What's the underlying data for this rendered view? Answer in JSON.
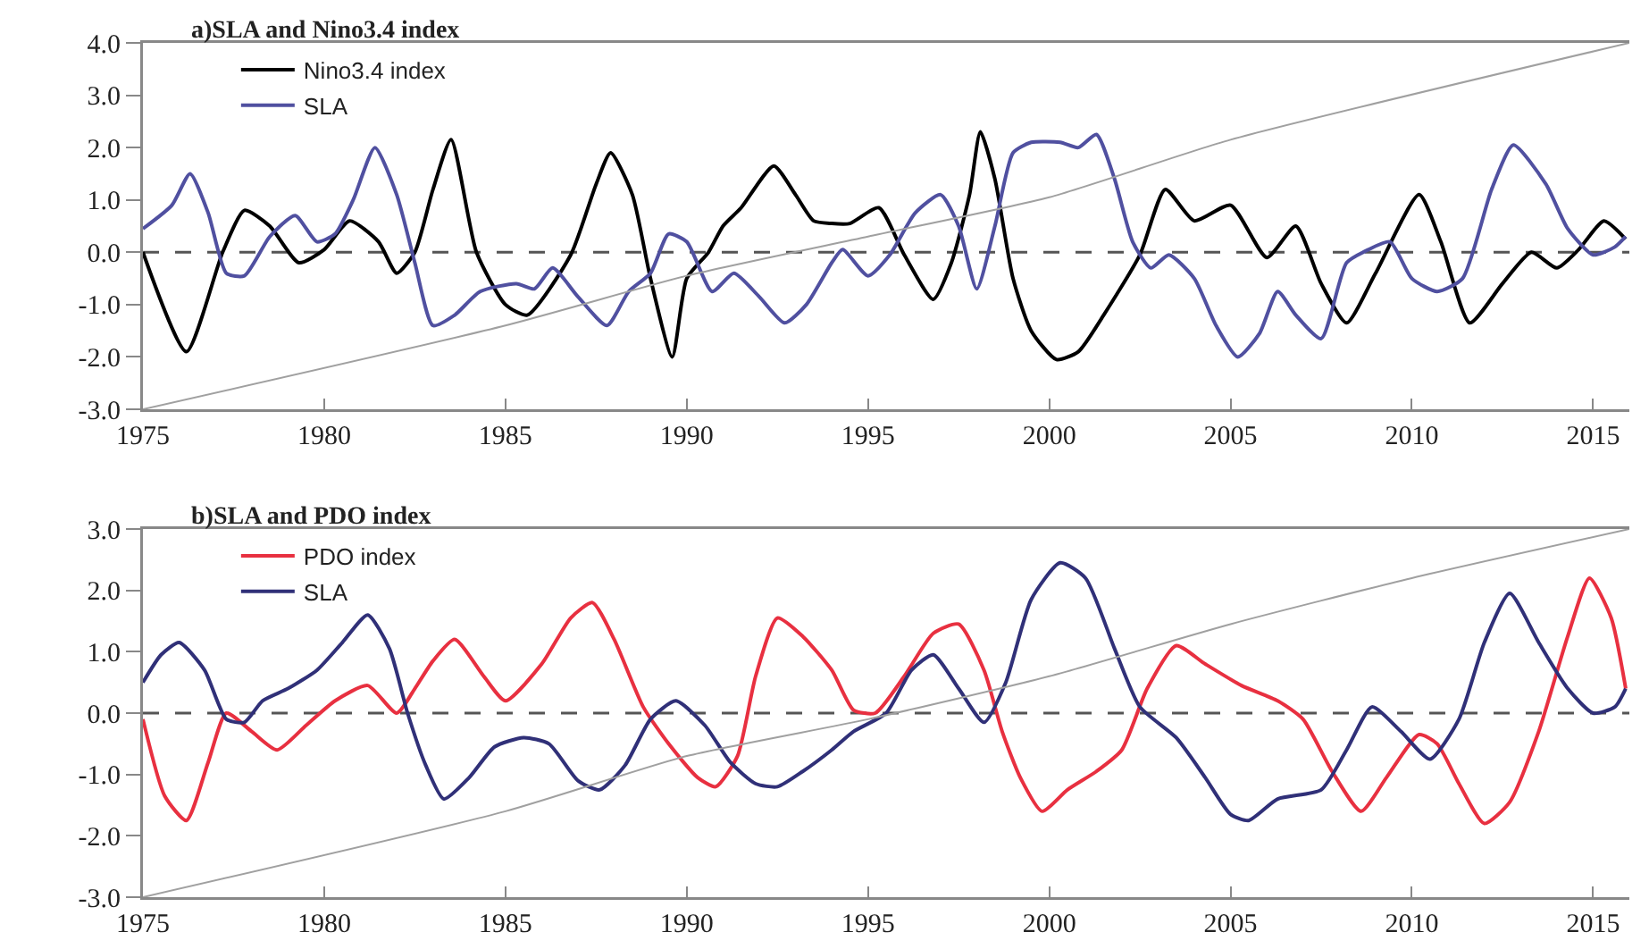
{
  "chart_data": [
    {
      "type": "line",
      "title": "a)SLA and Nino3.4 index",
      "xlim": [
        1975,
        2016
      ],
      "xticks": [
        1975,
        1980,
        1985,
        1990,
        1995,
        2000,
        2005,
        2010,
        2015
      ],
      "ylim": [
        -3,
        4
      ],
      "yticks": [
        {
          "value": -3,
          "label": "-3.0"
        },
        {
          "value": -2,
          "label": "-2.0"
        },
        {
          "value": -1,
          "label": "-1.0"
        },
        {
          "value": 0,
          "label": "0.0"
        },
        {
          "value": 1,
          "label": "1.0"
        },
        {
          "value": 2,
          "label": "2.0"
        },
        {
          "value": 3,
          "label": "3.0"
        },
        {
          "value": 4,
          "label": "4.0"
        }
      ],
      "grid": false,
      "legend": "top left",
      "marker": "none",
      "line_style": "solid",
      "ref_lines": [
        {
          "axis": "y",
          "value": 0,
          "color": "#555555",
          "line_style": "dashed"
        }
      ],
      "series": [
        {
          "name": "Nino3.4 index",
          "color": "#000000",
          "x": [
            1975,
            1976.2,
            1977.2,
            1977.8,
            1978.5,
            1979.3,
            1980,
            1980.7,
            1981.5,
            1982,
            1982.5,
            1983,
            1983.5,
            1984.2,
            1985,
            1985.6,
            1986.8,
            1987.5,
            1987.9,
            1988.5,
            1989,
            1989.6,
            1990,
            1990.6,
            1991,
            1991.5,
            1992.4,
            1993,
            1993.5,
            1994,
            1994.5,
            1995.3,
            1996,
            1996.8,
            1997.3,
            1997.8,
            1998.1,
            1998.5,
            1999,
            1999.5,
            2000.2,
            2000.8,
            2001.5,
            2002.5,
            2003.2,
            2004,
            2005,
            2006,
            2006.8,
            2007.5,
            2008.2,
            2009,
            2010.2,
            2010.8,
            2011.6,
            2012.5,
            2013.3,
            2014,
            2014.6,
            2015.3,
            2015.9
          ],
          "values": [
            0,
            -1.9,
            0,
            0.8,
            0.5,
            -0.2,
            0.05,
            0.6,
            0.2,
            -0.4,
            0,
            1.2,
            2.15,
            0,
            -1,
            -1.2,
            -0.05,
            1.3,
            1.9,
            1.1,
            -0.5,
            -2,
            -0.5,
            0,
            0.5,
            0.85,
            1.65,
            1.1,
            0.6,
            0.55,
            0.55,
            0.85,
            -0.05,
            -0.9,
            -0.2,
            1.1,
            2.3,
            1.4,
            -0.5,
            -1.5,
            -2.05,
            -1.9,
            -1.2,
            -0.05,
            1.2,
            0.6,
            0.9,
            -0.1,
            0.5,
            -0.6,
            -1.35,
            -0.4,
            1.1,
            0.2,
            -1.35,
            -0.6,
            0,
            -0.3,
            0.05,
            0.6,
            0.25
          ]
        },
        {
          "name": "SLA",
          "color": "#5050a0",
          "x": [
            1975,
            1975.8,
            1976.3,
            1976.8,
            1977.3,
            1977.8,
            1978.5,
            1979.2,
            1979.8,
            1980.3,
            1980.8,
            1981.4,
            1982,
            1982.5,
            1983,
            1983.6,
            1984.3,
            1985.3,
            1985.8,
            1986.3,
            1987,
            1987.8,
            1988.4,
            1989,
            1989.5,
            1990,
            1990.7,
            1991.3,
            1992,
            1992.7,
            1993.3,
            1994,
            1994.3,
            1995,
            1995.6,
            1996.3,
            1997,
            1997.5,
            1998,
            1998.5,
            1999,
            1999.5,
            2000.3,
            2000.8,
            2001.3,
            2001.8,
            2002.3,
            2002.8,
            2003.3,
            2004,
            2004.6,
            2005.2,
            2005.8,
            2006.3,
            2006.8,
            2007.5,
            2008.2,
            2008.8,
            2009.4,
            2010,
            2010.7,
            2011.4,
            2012.2,
            2012.8,
            2013.7,
            2014.3,
            2015,
            2015.6,
            2015.9
          ],
          "values": [
            0.45,
            0.9,
            1.5,
            0.75,
            -0.4,
            -0.45,
            0.3,
            0.7,
            0.2,
            0.35,
            1,
            2,
            1.1,
            -0.2,
            -1.4,
            -1.2,
            -0.75,
            -0.6,
            -0.7,
            -0.3,
            -0.85,
            -1.4,
            -0.75,
            -0.4,
            0.35,
            0.2,
            -0.75,
            -0.4,
            -0.85,
            -1.35,
            -1,
            -0.2,
            0.05,
            -0.45,
            -0.05,
            0.75,
            1.1,
            0.5,
            -0.7,
            0.5,
            1.9,
            2.1,
            2.1,
            2,
            2.25,
            1.4,
            0.2,
            -0.3,
            -0.05,
            -0.5,
            -1.4,
            -2,
            -1.55,
            -0.75,
            -1.2,
            -1.65,
            -0.2,
            0.05,
            0.2,
            -0.5,
            -0.75,
            -0.5,
            1.2,
            2.05,
            1.3,
            0.45,
            -0.05,
            0.1,
            0.3
          ]
        },
        {
          "color": "#a0a0a0",
          "x": [
            1975,
            1985,
            1990,
            1995,
            2000,
            2005,
            2016
          ],
          "values": [
            -3,
            -1.4,
            -0.45,
            0.3,
            1.05,
            2.15,
            4
          ]
        }
      ]
    },
    {
      "type": "line",
      "title": "b)SLA and PDO index",
      "xlim": [
        1975,
        2016
      ],
      "xticks": [
        1975,
        1980,
        1985,
        1990,
        1995,
        2000,
        2005,
        2010,
        2015
      ],
      "ylim": [
        -3,
        3
      ],
      "yticks": [
        {
          "value": -3,
          "label": "-3.0"
        },
        {
          "value": -2,
          "label": "-2.0"
        },
        {
          "value": -1,
          "label": "-1.0"
        },
        {
          "value": 0,
          "label": "0.0"
        },
        {
          "value": 1,
          "label": "1.0"
        },
        {
          "value": 2,
          "label": "2.0"
        },
        {
          "value": 3,
          "label": "3.0"
        }
      ],
      "grid": false,
      "legend": "top left",
      "marker": "none",
      "line_style": "solid",
      "ref_lines": [
        {
          "axis": "y",
          "value": 0,
          "color": "#555555",
          "line_style": "dashed"
        }
      ],
      "series": [
        {
          "name": "PDO index",
          "color": "#e83040",
          "x": [
            1975,
            1975.6,
            1976.2,
            1976.8,
            1977.3,
            1978,
            1978.7,
            1979.5,
            1980.3,
            1981.2,
            1982,
            1982.5,
            1983,
            1983.6,
            1984.4,
            1985,
            1986,
            1986.8,
            1987.4,
            1988,
            1988.8,
            1989.5,
            1990.3,
            1990.8,
            1991.4,
            1991.9,
            1992.5,
            1993.2,
            1994,
            1994.6,
            1995.2,
            1996,
            1996.8,
            1997.5,
            1998.2,
            1998.7,
            1999.2,
            1999.8,
            2000.5,
            2001.3,
            2002,
            2002.7,
            2003.5,
            2004.3,
            2005.3,
            2006.3,
            2007,
            2007.8,
            2008.6,
            2009.3,
            2010.2,
            2010.7,
            2011.3,
            2012,
            2012.7,
            2013.5,
            2014.3,
            2014.9,
            2015.5,
            2015.9
          ],
          "values": [
            -0.1,
            -1.35,
            -1.75,
            -0.8,
            0,
            -0.3,
            -0.6,
            -0.2,
            0.2,
            0.45,
            0,
            0.4,
            0.85,
            1.2,
            0.6,
            0.2,
            0.8,
            1.55,
            1.8,
            1.2,
            0.1,
            -0.5,
            -1.05,
            -1.2,
            -0.7,
            0.6,
            1.55,
            1.25,
            0.7,
            0.05,
            0,
            0.6,
            1.3,
            1.45,
            0.7,
            -0.3,
            -1.05,
            -1.6,
            -1.25,
            -0.95,
            -0.6,
            0.4,
            1.1,
            0.8,
            0.45,
            0.2,
            -0.1,
            -0.95,
            -1.6,
            -1.05,
            -0.35,
            -0.5,
            -1.15,
            -1.8,
            -1.45,
            -0.3,
            1.25,
            2.2,
            1.55,
            0.4
          ]
        },
        {
          "name": "SLA",
          "color": "#303078",
          "x": [
            1975,
            1975.5,
            1976,
            1976.7,
            1977.3,
            1977.8,
            1978.3,
            1979,
            1979.8,
            1980.5,
            1981.2,
            1981.8,
            1982.3,
            1982.8,
            1983.3,
            1984,
            1984.7,
            1985.5,
            1986.2,
            1987,
            1987.6,
            1988.3,
            1989,
            1989.7,
            1990.5,
            1991.2,
            1991.9,
            1992.5,
            1993.2,
            1994,
            1994.6,
            1995.5,
            1996.2,
            1996.8,
            1997.5,
            1998.2,
            1998.8,
            1999.5,
            2000.3,
            2001,
            2001.8,
            2002.5,
            2003.5,
            2004.3,
            2005,
            2005.5,
            2006.3,
            2007.5,
            2008.2,
            2008.9,
            2009.7,
            2010.5,
            2011.3,
            2012,
            2012.7,
            2013.5,
            2014.3,
            2015,
            2015.6,
            2015.9
          ],
          "values": [
            0.5,
            0.95,
            1.15,
            0.7,
            -0.1,
            -0.15,
            0.2,
            0.4,
            0.7,
            1.15,
            1.6,
            1.05,
            0,
            -0.85,
            -1.4,
            -1.05,
            -0.55,
            -0.4,
            -0.5,
            -1.1,
            -1.25,
            -0.85,
            -0.1,
            0.2,
            -0.2,
            -0.8,
            -1.15,
            -1.2,
            -0.95,
            -0.6,
            -0.3,
            0,
            0.7,
            0.95,
            0.4,
            -0.15,
            0.5,
            1.85,
            2.45,
            2.2,
            1.05,
            0.1,
            -0.4,
            -1.05,
            -1.65,
            -1.75,
            -1.4,
            -1.25,
            -0.6,
            0.1,
            -0.3,
            -0.75,
            -0.1,
            1.15,
            1.95,
            1.15,
            0.4,
            0,
            0.1,
            0.4
          ]
        },
        {
          "color": "#a0a0a0",
          "x": [
            1975,
            1985,
            1990,
            1995,
            2000,
            2005,
            2010,
            2016
          ],
          "values": [
            -3,
            -1.6,
            -0.7,
            -0.1,
            0.6,
            1.45,
            2.2,
            3
          ]
        }
      ]
    }
  ]
}
